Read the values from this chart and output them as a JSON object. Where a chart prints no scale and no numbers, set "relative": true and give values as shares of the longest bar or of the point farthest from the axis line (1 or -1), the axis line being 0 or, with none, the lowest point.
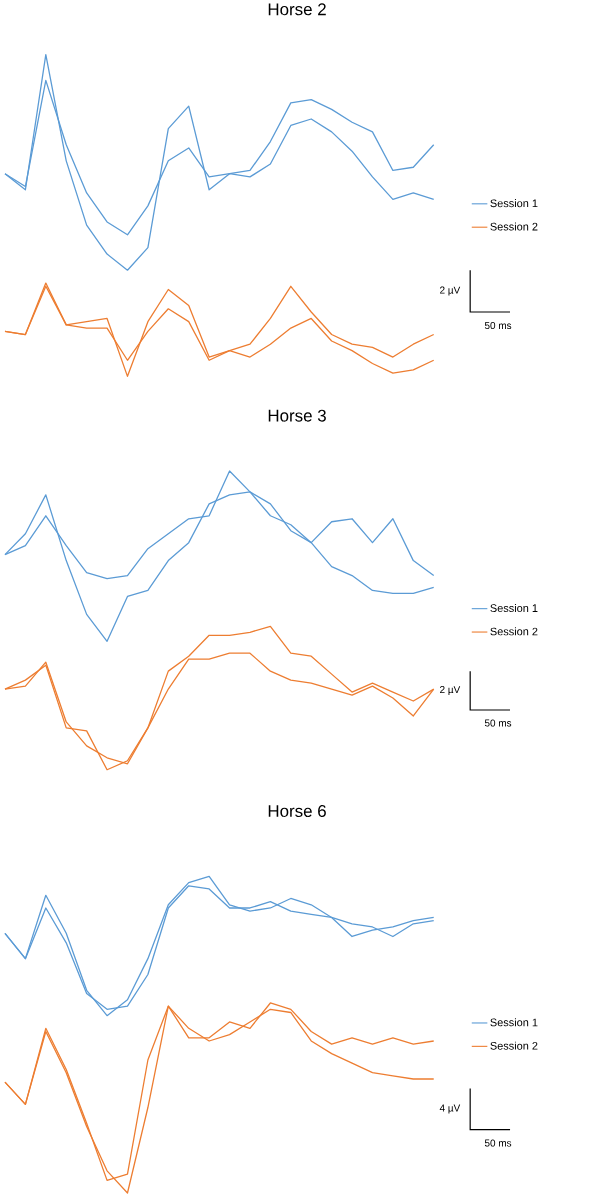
{
  "chart_data": [
    {
      "type": "line",
      "title": "Horse 2",
      "relative": true,
      "legend": "right",
      "annotations": [
        "2 µV",
        "50 ms"
      ],
      "categories": [
        null,
        null,
        null,
        null,
        null,
        null,
        null,
        null,
        null,
        null,
        null,
        null,
        null,
        null,
        null,
        null,
        null,
        null,
        null,
        null,
        null,
        null
      ],
      "series": [
        {
          "name": "Session 1",
          "color": "#5b9bd5",
          "values": [
            0.63,
            0.58,
            1.0,
            0.67,
            0.47,
            0.38,
            0.33,
            0.4,
            0.77,
            0.84,
            0.58,
            0.63,
            0.64,
            0.73,
            0.85,
            0.86,
            0.83,
            0.79,
            0.76,
            0.64,
            0.65,
            0.72
          ]
        },
        {
          "color": "#5b9bd5",
          "values": [
            0.63,
            0.59,
            0.92,
            0.72,
            0.57,
            0.48,
            0.44,
            0.53,
            0.67,
            0.71,
            0.62,
            0.63,
            0.62,
            0.66,
            0.78,
            0.8,
            0.76,
            0.7,
            0.62,
            0.55,
            0.57,
            0.55
          ]
        },
        {
          "name": "Session 2",
          "color": "#ed7d31",
          "values": [
            0.14,
            0.13,
            0.29,
            0.16,
            0.17,
            0.18,
            0,
            0.17,
            0.27,
            0.22,
            0.06,
            0.08,
            0.1,
            0.18,
            0.28,
            0.2,
            0.13,
            0.1,
            0.09,
            0.06,
            0.1,
            0.13
          ]
        },
        {
          "color": "#ed7d31",
          "values": [
            0.14,
            0.13,
            0.28,
            0.16,
            0.15,
            0.15,
            0.05,
            0.14,
            0.21,
            0.17,
            0.05,
            0.08,
            0.06,
            0.1,
            0.15,
            0.18,
            0.11,
            0.08,
            0.04,
            0.01,
            0.02,
            0.05
          ]
        }
      ]
    },
    {
      "type": "line",
      "title": "Horse 3",
      "relative": true,
      "legend": "right",
      "annotations": [
        "2 µV",
        "50 ms"
      ],
      "categories": [
        null,
        null,
        null,
        null,
        null,
        null,
        null,
        null,
        null,
        null,
        null,
        null,
        null,
        null,
        null,
        null,
        null,
        null,
        null,
        null,
        null,
        null
      ],
      "series": [
        {
          "name": "Session 1",
          "color": "#5b9bd5",
          "values": [
            0.72,
            0.79,
            0.92,
            0.7,
            0.52,
            0.43,
            0.58,
            0.6,
            0.7,
            0.76,
            0.89,
            0.92,
            0.93,
            0.85,
            0.82,
            0.76,
            0.83,
            0.84,
            0.76,
            0.84,
            0.7,
            0.65
          ]
        },
        {
          "color": "#5b9bd5",
          "values": [
            0.72,
            0.75,
            0.85,
            0.75,
            0.66,
            0.64,
            0.65,
            0.74,
            0.79,
            0.84,
            0.85,
            1.0,
            0.93,
            0.89,
            0.8,
            0.76,
            0.68,
            0.65,
            0.6,
            0.59,
            0.59,
            0.61
          ]
        },
        {
          "name": "Session 2",
          "color": "#ed7d31",
          "values": [
            0.27,
            0.3,
            0.35,
            0.14,
            0.13,
            0,
            0.03,
            0.14,
            0.33,
            0.38,
            0.45,
            0.45,
            0.46,
            0.48,
            0.39,
            0.38,
            0.32,
            0.26,
            0.29,
            0.26,
            0.23,
            0.27
          ]
        },
        {
          "color": "#ed7d31",
          "values": [
            0.27,
            0.28,
            0.36,
            0.16,
            0.08,
            0.04,
            0.02,
            0.14,
            0.27,
            0.37,
            0.37,
            0.39,
            0.39,
            0.33,
            0.3,
            0.29,
            0.27,
            0.25,
            0.28,
            0.24,
            0.18,
            0.27
          ]
        }
      ]
    },
    {
      "type": "line",
      "title": "Horse 6",
      "relative": true,
      "legend": "right",
      "annotations": [
        "4 µV",
        "50 ms"
      ],
      "categories": [
        null,
        null,
        null,
        null,
        null,
        null,
        null,
        null,
        null,
        null,
        null,
        null,
        null,
        null,
        null,
        null,
        null,
        null,
        null,
        null,
        null,
        null
      ],
      "series": [
        {
          "name": "Session 1",
          "color": "#5b9bd5",
          "values": [
            0.82,
            0.74,
            0.94,
            0.82,
            0.64,
            0.56,
            0.61,
            0.74,
            0.91,
            0.98,
            1.0,
            0.91,
            0.89,
            0.9,
            0.93,
            0.91,
            0.87,
            0.81,
            0.83,
            0.84,
            0.86,
            0.87
          ]
        },
        {
          "color": "#5b9bd5",
          "values": [
            0.82,
            0.74,
            0.9,
            0.79,
            0.63,
            0.58,
            0.59,
            0.69,
            0.9,
            0.97,
            0.96,
            0.9,
            0.9,
            0.92,
            0.89,
            0.88,
            0.87,
            0.85,
            0.84,
            0.81,
            0.85,
            0.86
          ]
        },
        {
          "name": "Session 2",
          "color": "#ed7d31",
          "values": [
            0.35,
            0.28,
            0.51,
            0.38,
            0.21,
            0.07,
            0,
            0.27,
            0.59,
            0.49,
            0.49,
            0.54,
            0.52,
            0.6,
            0.58,
            0.51,
            0.47,
            0.49,
            0.47,
            0.49,
            0.47,
            0.48
          ]
        },
        {
          "color": "#ed7d31",
          "values": [
            0.35,
            0.28,
            0.52,
            0.39,
            0.22,
            0.04,
            0.06,
            0.42,
            0.59,
            0.52,
            0.48,
            0.5,
            0.54,
            0.58,
            0.57,
            0.48,
            0.44,
            0.41,
            0.38,
            0.37,
            0.36,
            0.36
          ]
        }
      ]
    }
  ]
}
